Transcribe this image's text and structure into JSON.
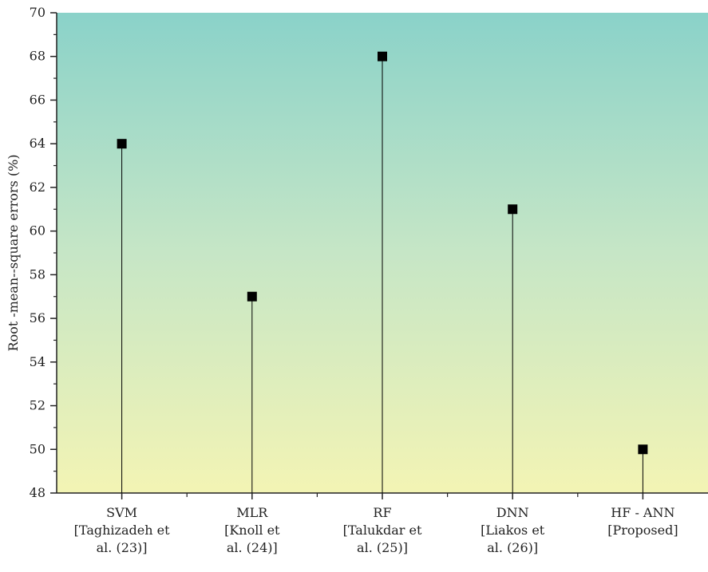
{
  "chart_data": {
    "type": "scatter",
    "style": "stem",
    "categories": [
      [
        "SVM",
        "[Taghizadeh et",
        "al. (23)]"
      ],
      [
        "MLR",
        "[Knoll et",
        "al. (24)]"
      ],
      [
        "RF",
        "[Talukdar et",
        "al. (25)]"
      ],
      [
        "DNN",
        "[Liakos et",
        "al. (26)]"
      ],
      [
        "HF - ANN",
        "[Proposed]"
      ]
    ],
    "values": [
      64,
      57,
      68,
      61,
      50
    ],
    "ylabel": "Root -mean--square errors (%)",
    "xlabel": "",
    "title": "",
    "ylim": [
      48,
      70
    ],
    "yticks": [
      48,
      50,
      52,
      54,
      56,
      58,
      60,
      62,
      64,
      66,
      68,
      70
    ],
    "grid": false,
    "background_gradient": {
      "top": "#8ad2c9",
      "bottom": "#f3f4b4"
    },
    "marker_color": "#000000",
    "stem_color": "#000000"
  }
}
